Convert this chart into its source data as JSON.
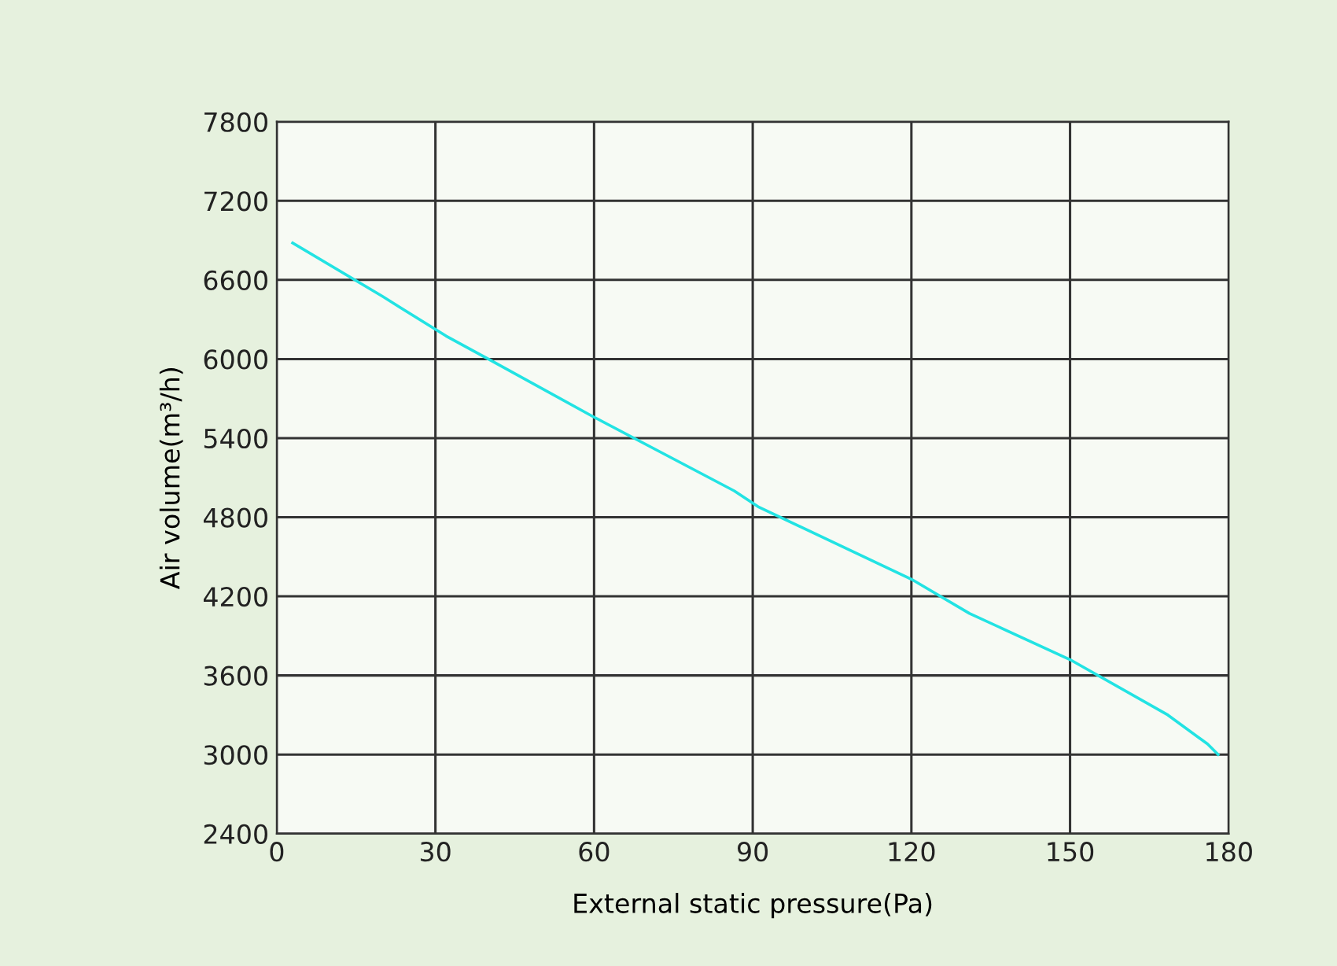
{
  "chart_data": {
    "type": "line",
    "xlabel": "External static pressure(Pa)",
    "ylabel": "Air volume(m³/h)",
    "series": [
      {
        "color": "#22e3e3",
        "x": [
          3,
          20,
          32,
          40,
          59.5,
          86.5,
          91,
          120,
          131,
          150,
          168.5,
          176,
          178
        ],
        "values": [
          6880,
          6475,
          6175,
          6000,
          5570,
          5000,
          4880,
          4330,
          4070,
          3720,
          3300,
          3080,
          3000
        ]
      }
    ],
    "xlim": [
      0,
      180
    ],
    "xticks": [
      0,
      30,
      60,
      90,
      120,
      150,
      180
    ],
    "ylim": [
      2400,
      7800
    ],
    "yticks": [
      2400,
      3000,
      3600,
      4200,
      4800,
      5400,
      6000,
      6600,
      7200,
      7800
    ],
    "grid": true,
    "marker": "none",
    "line_style": "solid"
  }
}
